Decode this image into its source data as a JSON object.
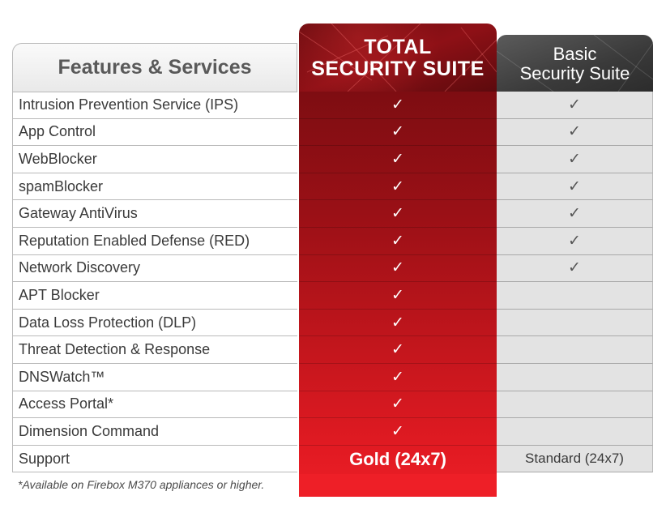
{
  "header": {
    "features_title": "Features & Services",
    "total_line1": "TOTAL",
    "total_line2": "SECURITY SUITE",
    "basic_line1": "Basic",
    "basic_line2": "Security Suite"
  },
  "colors": {
    "total_accent": "#c5161d",
    "basic_header": "#3a3a3a",
    "basic_cell": "#e3e3e3"
  },
  "check_glyph": "✓",
  "rows": [
    {
      "feature": "Intrusion Prevention Service (IPS)",
      "total": "✓",
      "basic": "✓"
    },
    {
      "feature": "App Control",
      "total": "✓",
      "basic": "✓"
    },
    {
      "feature": "WebBlocker",
      "total": "✓",
      "basic": "✓"
    },
    {
      "feature": "spamBlocker",
      "total": "✓",
      "basic": "✓"
    },
    {
      "feature": "Gateway AntiVirus",
      "total": "✓",
      "basic": "✓"
    },
    {
      "feature": "Reputation Enabled Defense (RED)",
      "total": "✓",
      "basic": "✓"
    },
    {
      "feature": "Network Discovery",
      "total": "✓",
      "basic": "✓"
    },
    {
      "feature": "APT Blocker",
      "total": "✓",
      "basic": ""
    },
    {
      "feature": "Data Loss Protection (DLP)",
      "total": "✓",
      "basic": ""
    },
    {
      "feature": "Threat Detection & Response",
      "total": "✓",
      "basic": ""
    },
    {
      "feature": "DNSWatch™",
      "total": "✓",
      "basic": ""
    },
    {
      "feature": "Access Portal*",
      "total": "✓",
      "basic": ""
    },
    {
      "feature": "Dimension Command",
      "total": "✓",
      "basic": ""
    },
    {
      "feature": "Support",
      "total": "Gold (24x7)",
      "basic": "Standard (24x7)"
    }
  ],
  "footnote": "*Available on Firebox M370 appliances or higher."
}
